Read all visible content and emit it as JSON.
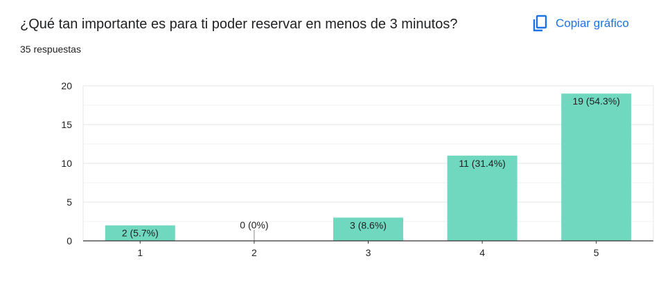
{
  "header": {
    "question": "¿Qué tan importante es para ti poder reservar en menos de 3 minutos?",
    "responses": "35 respuestas",
    "copy_label": "Copiar gráfico"
  },
  "icons": {
    "copy": "copy-icon"
  },
  "colors": {
    "bar": "#6fd8bf",
    "accent": "#1a73e8",
    "grid": "#e6e6e6",
    "axis": "#333333"
  },
  "chart_data": {
    "type": "bar",
    "categories": [
      "1",
      "2",
      "3",
      "4",
      "5"
    ],
    "values": [
      2,
      0,
      3,
      11,
      19
    ],
    "data_labels": [
      "2 (5.7%)",
      "0 (0%)",
      "3 (8.6%)",
      "11 (31.4%)",
      "19 (54.3%)"
    ],
    "yticks": [
      0,
      5,
      10,
      15,
      20
    ],
    "ylim": [
      0,
      20
    ],
    "grid": true,
    "legend": "none",
    "title": "",
    "xlabel": "",
    "ylabel": ""
  }
}
